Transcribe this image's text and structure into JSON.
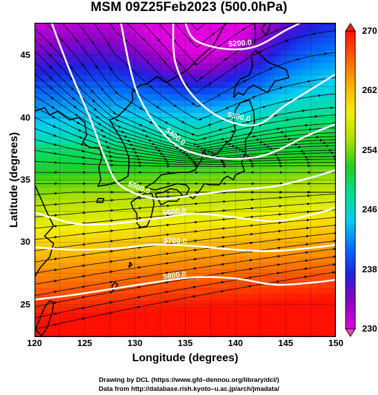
{
  "title": "MSM 09Z25Feb2023 (500.0hPa)",
  "xlabel": "Longitude (degrees)",
  "ylabel": "Latitude  (degrees)",
  "credits": [
    "Drawing by DCL (https://www.gfd–dennou.org/library/dcl/)",
    "Data from http://database.rish.kyoto–u.ac.jp/arch/jmadata/"
  ],
  "chart_data": {
    "type": "heatmap",
    "variable": "500 hPa temperature (K) with geopotential height contours and streamlines",
    "xlim": [
      120,
      150
    ],
    "ylim": [
      22.4,
      47.6
    ],
    "x_ticks": [
      "120",
      "125",
      "130",
      "135",
      "140",
      "145",
      "150"
    ],
    "y_ticks": [
      "25",
      "30",
      "35",
      "40",
      "45"
    ],
    "colorbar": {
      "range": [
        230,
        270
      ],
      "ticks": [
        "230",
        "238",
        "246",
        "254",
        "262",
        "270"
      ],
      "colors": [
        "#e000e0",
        "#9000c8",
        "#2020e0",
        "#0070ff",
        "#00d0f0",
        "#00e090",
        "#20d020",
        "#b0e000",
        "#f0f000",
        "#ffb000",
        "#ff6000",
        "#ff1000"
      ]
    },
    "contours": [
      {
        "label": "5200.0",
        "points": [
          [
            135,
            47.6
          ],
          [
            136,
            46.2
          ],
          [
            139,
            45.5
          ],
          [
            142,
            45.7
          ],
          [
            145,
            47.0
          ],
          [
            146.5,
            47.6
          ]
        ]
      },
      {
        "label": "5300.0",
        "points": [
          [
            133.8,
            47.6
          ],
          [
            134,
            44.5
          ],
          [
            135.5,
            42.0
          ],
          [
            138.5,
            40.0
          ],
          [
            142,
            39.4
          ],
          [
            145,
            41.0
          ],
          [
            148,
            42.5
          ],
          [
            150,
            43.5
          ]
        ]
      },
      {
        "label": "5400.0",
        "points": [
          [
            128.6,
            47.6
          ],
          [
            129.5,
            44.0
          ],
          [
            130.5,
            41.5
          ],
          [
            132.5,
            39.0
          ],
          [
            135,
            37.4
          ],
          [
            139,
            36.7
          ],
          [
            143,
            37.0
          ],
          [
            147,
            38.5
          ],
          [
            150,
            39.5
          ]
        ]
      },
      {
        "label": "5500.0",
        "points": [
          [
            121.7,
            47.6
          ],
          [
            123.4,
            44.0
          ],
          [
            125.5,
            40.0
          ],
          [
            127,
            36.8
          ],
          [
            128.5,
            34.6
          ],
          [
            132,
            33.5
          ],
          [
            136,
            33.8
          ],
          [
            140,
            34.2
          ],
          [
            144,
            34.5
          ],
          [
            148,
            35.3
          ],
          [
            150,
            35.8
          ]
        ]
      },
      {
        "label": "5600.0",
        "points": [
          [
            120,
            32.4
          ],
          [
            124,
            31.5
          ],
          [
            128,
            31.5
          ],
          [
            132,
            31.9
          ],
          [
            136,
            32.3
          ],
          [
            140,
            32.0
          ],
          [
            144,
            31.7
          ],
          [
            148,
            32.3
          ],
          [
            150,
            32.8
          ]
        ]
      },
      {
        "label": "5700.0",
        "points": [
          [
            120,
            29.6
          ],
          [
            124,
            29.4
          ],
          [
            128,
            29.5
          ],
          [
            132,
            29.8
          ],
          [
            136,
            29.7
          ],
          [
            140,
            29.4
          ],
          [
            144,
            29.3
          ],
          [
            148,
            29.6
          ],
          [
            150,
            29.8
          ]
        ]
      },
      {
        "label": "5800.0",
        "points": [
          [
            120,
            25.4
          ],
          [
            124,
            25.8
          ],
          [
            128,
            26.3
          ],
          [
            132,
            26.8
          ],
          [
            136,
            27.2
          ],
          [
            140,
            27.1
          ],
          [
            144,
            26.6
          ],
          [
            148,
            26.8
          ],
          [
            150,
            27.0
          ]
        ]
      }
    ]
  }
}
